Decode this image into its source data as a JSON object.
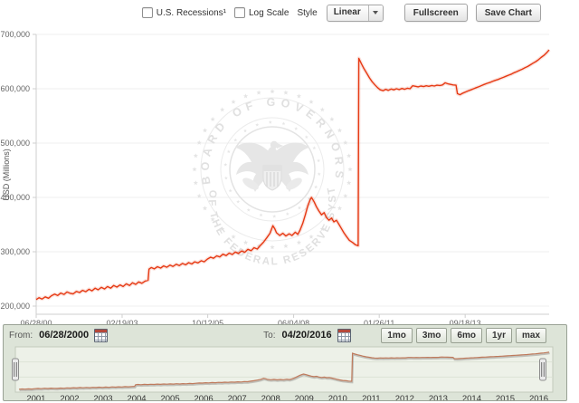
{
  "toolbar": {
    "recessions_label": "U.S. Recessions¹",
    "log_scale_label": "Log Scale",
    "style_label": "Style",
    "style_value": "Linear",
    "fullscreen_label": "Fullscreen",
    "save_chart_label": "Save Chart"
  },
  "watermark": {
    "top_text": "BOARD OF GOVERNORS",
    "bottom_text": "OF THE FEDERAL RESERVE SYSTEM"
  },
  "range_selector": {
    "from_label": "From:",
    "from_value": "06/28/2000",
    "to_label": "To:",
    "to_value": "04/20/2016",
    "buttons": [
      "1mo",
      "3mo",
      "6mo",
      "1yr",
      "max"
    ]
  },
  "chart_data": {
    "type": "line",
    "title": "",
    "xlabel": "",
    "ylabel": "USD (Millions)",
    "series_color": "#e63913",
    "grid": "horizontal",
    "x_range": [
      2000.49,
      2016.31
    ],
    "y_range": [
      200000,
      700000
    ],
    "y_ticks": [
      {
        "label": "200,000",
        "value": 200000
      },
      {
        "label": "300,000",
        "value": 300000
      },
      {
        "label": "400,000",
        "value": 400000
      },
      {
        "label": "500,000",
        "value": 500000
      },
      {
        "label": "600,000",
        "value": 600000
      },
      {
        "label": "700,000",
        "value": 700000
      }
    ],
    "x_ticks": [
      {
        "label": "06/28/00",
        "year": 2000.49
      },
      {
        "label": "02/19/03",
        "year": 2003.14
      },
      {
        "label": "10/12/05",
        "year": 2005.78
      },
      {
        "label": "06/04/08",
        "year": 2008.43
      },
      {
        "label": "01/26/11",
        "year": 2011.07
      },
      {
        "label": "09/18/13",
        "year": 2013.72
      }
    ],
    "navigator": {
      "years": [
        2001,
        2002,
        2003,
        2004,
        2005,
        2006,
        2007,
        2008,
        2009,
        2010,
        2011,
        2012,
        2013,
        2014,
        2015,
        2016
      ],
      "y_range": [
        210000,
        680000
      ],
      "line_color": "#bf7a5c"
    },
    "points": [
      [
        2000.49,
        212000
      ],
      [
        2000.58,
        215500
      ],
      [
        2000.67,
        213000
      ],
      [
        2000.77,
        217000
      ],
      [
        2000.87,
        214500
      ],
      [
        2000.96,
        219000
      ],
      [
        2001.06,
        222000
      ],
      [
        2001.15,
        219500
      ],
      [
        2001.25,
        224000
      ],
      [
        2001.35,
        221500
      ],
      [
        2001.44,
        226000
      ],
      [
        2001.54,
        223500
      ],
      [
        2001.63,
        222500
      ],
      [
        2001.73,
        227000
      ],
      [
        2001.83,
        225000
      ],
      [
        2001.92,
        229000
      ],
      [
        2002.02,
        226500
      ],
      [
        2002.12,
        231000
      ],
      [
        2002.21,
        228000
      ],
      [
        2002.31,
        233000
      ],
      [
        2002.4,
        230000
      ],
      [
        2002.5,
        234500
      ],
      [
        2002.6,
        231500
      ],
      [
        2002.69,
        236000
      ],
      [
        2002.79,
        233000
      ],
      [
        2002.88,
        238000
      ],
      [
        2002.98,
        235000
      ],
      [
        2003.08,
        239000
      ],
      [
        2003.17,
        236000
      ],
      [
        2003.27,
        241000
      ],
      [
        2003.37,
        238000
      ],
      [
        2003.46,
        243000
      ],
      [
        2003.56,
        240000
      ],
      [
        2003.65,
        244500
      ],
      [
        2003.75,
        242000
      ],
      [
        2003.85,
        246000
      ],
      [
        2003.94,
        247500
      ],
      [
        2003.97,
        268000
      ],
      [
        2004.04,
        271000
      ],
      [
        2004.13,
        268500
      ],
      [
        2004.23,
        272500
      ],
      [
        2004.33,
        270000
      ],
      [
        2004.42,
        274000
      ],
      [
        2004.52,
        271500
      ],
      [
        2004.62,
        275500
      ],
      [
        2004.71,
        273000
      ],
      [
        2004.81,
        277000
      ],
      [
        2004.9,
        274500
      ],
      [
        2005.0,
        278500
      ],
      [
        2005.1,
        276000
      ],
      [
        2005.19,
        280000
      ],
      [
        2005.29,
        277500
      ],
      [
        2005.38,
        281500
      ],
      [
        2005.48,
        279500
      ],
      [
        2005.58,
        283500
      ],
      [
        2005.67,
        281500
      ],
      [
        2005.77,
        286500
      ],
      [
        2005.87,
        290000
      ],
      [
        2005.96,
        288000
      ],
      [
        2006.06,
        292500
      ],
      [
        2006.15,
        290500
      ],
      [
        2006.25,
        295500
      ],
      [
        2006.35,
        293000
      ],
      [
        2006.44,
        297500
      ],
      [
        2006.54,
        295000
      ],
      [
        2006.63,
        299500
      ],
      [
        2006.73,
        297000
      ],
      [
        2006.83,
        301500
      ],
      [
        2006.92,
        299000
      ],
      [
        2007.02,
        304500
      ],
      [
        2007.12,
        302000
      ],
      [
        2007.21,
        307500
      ],
      [
        2007.31,
        305000
      ],
      [
        2007.4,
        311500
      ],
      [
        2007.5,
        317500
      ],
      [
        2007.6,
        325500
      ],
      [
        2007.7,
        334000
      ],
      [
        2007.79,
        348000
      ],
      [
        2007.85,
        342000
      ],
      [
        2007.9,
        335000
      ],
      [
        2008.0,
        330000
      ],
      [
        2008.1,
        334000
      ],
      [
        2008.19,
        329000
      ],
      [
        2008.29,
        333000
      ],
      [
        2008.38,
        330000
      ],
      [
        2008.48,
        336000
      ],
      [
        2008.56,
        332000
      ],
      [
        2008.63,
        340000
      ],
      [
        2008.71,
        352000
      ],
      [
        2008.79,
        368000
      ],
      [
        2008.87,
        385000
      ],
      [
        2008.94,
        396000
      ],
      [
        2008.98,
        400000
      ],
      [
        2009.06,
        392000
      ],
      [
        2009.13,
        383000
      ],
      [
        2009.21,
        375000
      ],
      [
        2009.29,
        368000
      ],
      [
        2009.37,
        372000
      ],
      [
        2009.44,
        363000
      ],
      [
        2009.52,
        358000
      ],
      [
        2009.6,
        362000
      ],
      [
        2009.67,
        355000
      ],
      [
        2009.75,
        358000
      ],
      [
        2009.83,
        350000
      ],
      [
        2009.9,
        343000
      ],
      [
        2009.98,
        335000
      ],
      [
        2010.06,
        328000
      ],
      [
        2010.15,
        321000
      ],
      [
        2010.25,
        317000
      ],
      [
        2010.33,
        313000
      ],
      [
        2010.42,
        311000
      ],
      [
        2010.44,
        656000
      ],
      [
        2010.52,
        646000
      ],
      [
        2010.6,
        637000
      ],
      [
        2010.69,
        628000
      ],
      [
        2010.77,
        620000
      ],
      [
        2010.85,
        613000
      ],
      [
        2010.94,
        607000
      ],
      [
        2011.02,
        602000
      ],
      [
        2011.1,
        598000
      ],
      [
        2011.19,
        596500
      ],
      [
        2011.27,
        599000
      ],
      [
        2011.35,
        597000
      ],
      [
        2011.44,
        599500
      ],
      [
        2011.52,
        598000
      ],
      [
        2011.6,
        600000
      ],
      [
        2011.69,
        598500
      ],
      [
        2011.77,
        600500
      ],
      [
        2011.85,
        599000
      ],
      [
        2011.94,
        601000
      ],
      [
        2012.02,
        600000
      ],
      [
        2012.1,
        605500
      ],
      [
        2012.19,
        604500
      ],
      [
        2012.27,
        603500
      ],
      [
        2012.35,
        605000
      ],
      [
        2012.44,
        604000
      ],
      [
        2012.52,
        605500
      ],
      [
        2012.6,
        604500
      ],
      [
        2012.69,
        606000
      ],
      [
        2012.77,
        605000
      ],
      [
        2012.85,
        606500
      ],
      [
        2012.94,
        606000
      ],
      [
        2013.02,
        607000
      ],
      [
        2013.1,
        611000
      ],
      [
        2013.19,
        609000
      ],
      [
        2013.27,
        608000
      ],
      [
        2013.35,
        607000
      ],
      [
        2013.44,
        606500
      ],
      [
        2013.48,
        591000
      ],
      [
        2013.56,
        589000
      ],
      [
        2013.65,
        592000
      ],
      [
        2013.73,
        594000
      ],
      [
        2013.81,
        596000
      ],
      [
        2013.9,
        598000
      ],
      [
        2013.98,
        600000
      ],
      [
        2014.06,
        602000
      ],
      [
        2014.15,
        604000
      ],
      [
        2014.23,
        606000
      ],
      [
        2014.31,
        608000
      ],
      [
        2014.4,
        610000
      ],
      [
        2014.48,
        611500
      ],
      [
        2014.56,
        613500
      ],
      [
        2014.65,
        615500
      ],
      [
        2014.73,
        617000
      ],
      [
        2014.81,
        619000
      ],
      [
        2014.9,
        621000
      ],
      [
        2014.98,
        623000
      ],
      [
        2015.06,
        625000
      ],
      [
        2015.15,
        627000
      ],
      [
        2015.23,
        629500
      ],
      [
        2015.31,
        631500
      ],
      [
        2015.4,
        634000
      ],
      [
        2015.48,
        636000
      ],
      [
        2015.56,
        638500
      ],
      [
        2015.65,
        641000
      ],
      [
        2015.73,
        644000
      ],
      [
        2015.81,
        647000
      ],
      [
        2015.9,
        650000
      ],
      [
        2015.98,
        653500
      ],
      [
        2016.06,
        657500
      ],
      [
        2016.15,
        661500
      ],
      [
        2016.23,
        666000
      ],
      [
        2016.31,
        671500
      ]
    ]
  }
}
